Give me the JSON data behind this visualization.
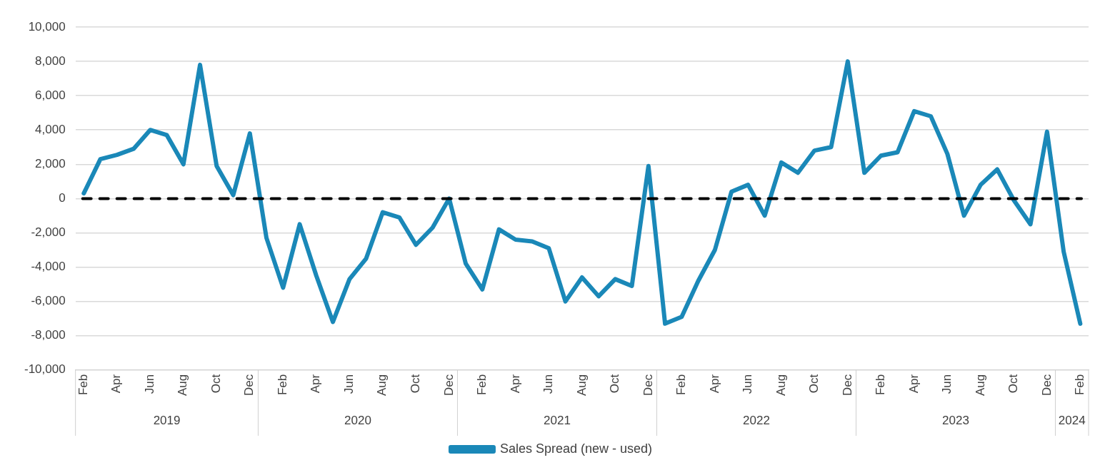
{
  "chart_data": {
    "type": "line",
    "categories": [
      "Feb",
      null,
      "Apr",
      null,
      "Jun",
      null,
      "Aug",
      null,
      "Oct",
      null,
      "Dec",
      null,
      "Feb",
      null,
      "Apr",
      null,
      "Jun",
      null,
      "Aug",
      null,
      "Oct",
      null,
      "Dec",
      null,
      "Feb",
      null,
      "Apr",
      null,
      "Jun",
      null,
      "Aug",
      null,
      "Oct",
      null,
      "Dec",
      null,
      "Feb",
      null,
      "Apr",
      null,
      "Jun",
      null,
      "Aug",
      null,
      "Oct",
      null,
      "Dec",
      null,
      "Feb",
      null,
      "Apr",
      null,
      "Jun",
      null,
      "Aug",
      null,
      "Oct",
      null,
      "Dec",
      null,
      "Feb"
    ],
    "series": [
      {
        "name": "Sales Spread (new - used)",
        "color": "#1a88b8",
        "values": [
          300,
          2300,
          2550,
          2900,
          4000,
          3700,
          2000,
          7800,
          1900,
          200,
          3800,
          -2300,
          -5200,
          -1500,
          -4500,
          -7200,
          -4700,
          -3500,
          -800,
          -1100,
          -2700,
          -1700,
          0,
          -3800,
          -5300,
          -1800,
          -2400,
          -2500,
          -2900,
          -6000,
          -4600,
          -5700,
          -4700,
          -5100,
          1900,
          -7300,
          -6900,
          -4800,
          -3000,
          400,
          800,
          -1000,
          2100,
          1500,
          2800,
          3000,
          8000,
          1500,
          2500,
          2700,
          5100,
          4800,
          2600,
          -1000,
          800,
          1700,
          -100,
          -1500,
          3900,
          -3100,
          -7300
        ]
      }
    ],
    "ylim": [
      -10000,
      10000
    ],
    "yticks": [
      {
        "value": -10000,
        "label": "-10,000"
      },
      {
        "value": -8000,
        "label": "-8,000"
      },
      {
        "value": -6000,
        "label": "-6,000"
      },
      {
        "value": -4000,
        "label": "-4,000"
      },
      {
        "value": -2000,
        "label": "-2,000"
      },
      0,
      {
        "value": 2000,
        "label": "2,000"
      },
      {
        "value": 4000,
        "label": "4,000"
      },
      {
        "value": 6000,
        "label": "6,000"
      },
      {
        "value": 8000,
        "label": "8,000"
      },
      {
        "value": 10000,
        "label": "10,000"
      }
    ],
    "ref_lines": [
      {
        "axis": "y",
        "value": 0,
        "color": "#000000",
        "line_style": "dashed"
      }
    ],
    "annotations": [
      "2019",
      "2020",
      "2021",
      "2022",
      "2023",
      "2024"
    ],
    "grid": "y",
    "legend": "bottom",
    "marker": "none",
    "line_style": "solid"
  }
}
